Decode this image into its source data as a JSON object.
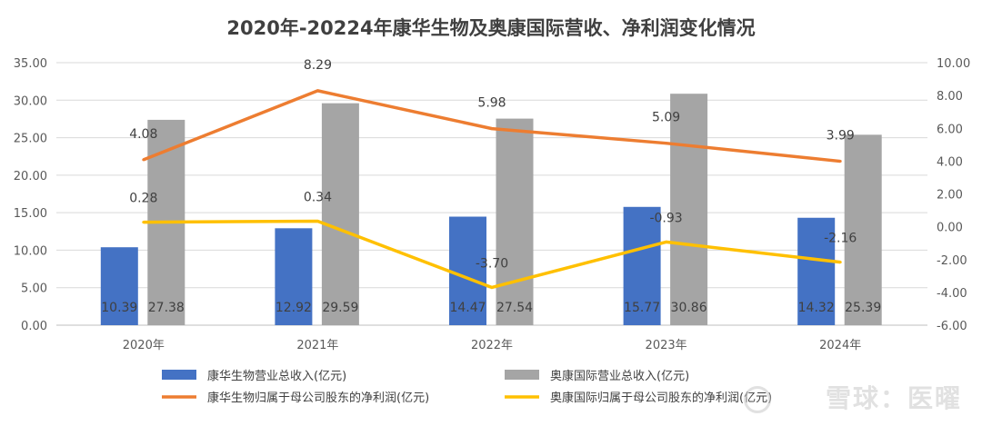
{
  "chart_data": {
    "type": "bar",
    "title": "2020年-20224年康华生物及奥康国际营收、净利润变化情况",
    "categories": [
      "2020年",
      "2021年",
      "2022年",
      "2023年",
      "2024年"
    ],
    "ylim_left": [
      0,
      35
    ],
    "yticks_left": [
      "0.00",
      "5.00",
      "10.00",
      "15.00",
      "20.00",
      "25.00",
      "30.00",
      "35.00"
    ],
    "ylim_right": [
      -6,
      10
    ],
    "yticks_right": [
      "-6.00",
      "-4.00",
      "-2.00",
      "0.00",
      "2.00",
      "4.00",
      "6.00",
      "8.00",
      "10.00"
    ],
    "grid": true,
    "legend_position": "bottom",
    "series": [
      {
        "name": "康华生物营业总收入(亿元)",
        "type": "bar",
        "axis": "left",
        "color": "#4472C4",
        "values": [
          10.39,
          12.92,
          14.47,
          15.77,
          14.32
        ],
        "labels": [
          "10.39",
          "12.92",
          "14.47",
          "15.77",
          "14.32"
        ]
      },
      {
        "name": "奥康国际营业总收入(亿元)",
        "type": "bar",
        "axis": "left",
        "color": "#A5A5A5",
        "values": [
          27.38,
          29.59,
          27.54,
          30.86,
          25.39
        ],
        "labels": [
          "27.38",
          "29.59",
          "27.54",
          "30.86",
          "25.39"
        ]
      },
      {
        "name": "康华生物归属于母公司股东的净利润(亿元)",
        "type": "line",
        "axis": "right",
        "color": "#ED7D31",
        "values": [
          4.08,
          8.29,
          5.98,
          5.09,
          3.99
        ],
        "labels": [
          "4.08",
          "8.29",
          "5.98",
          "5.09",
          "3.99"
        ]
      },
      {
        "name": "奥康国际归属于母公司股东的净利润(亿元)",
        "type": "line",
        "axis": "right",
        "color": "#FFC000",
        "values": [
          0.28,
          0.34,
          -3.7,
          -0.93,
          -2.16
        ],
        "labels": [
          "0.28",
          "0.34",
          "-3.70",
          "-0.93",
          "-2.16"
        ]
      }
    ]
  },
  "watermark": "雪球：医曜"
}
